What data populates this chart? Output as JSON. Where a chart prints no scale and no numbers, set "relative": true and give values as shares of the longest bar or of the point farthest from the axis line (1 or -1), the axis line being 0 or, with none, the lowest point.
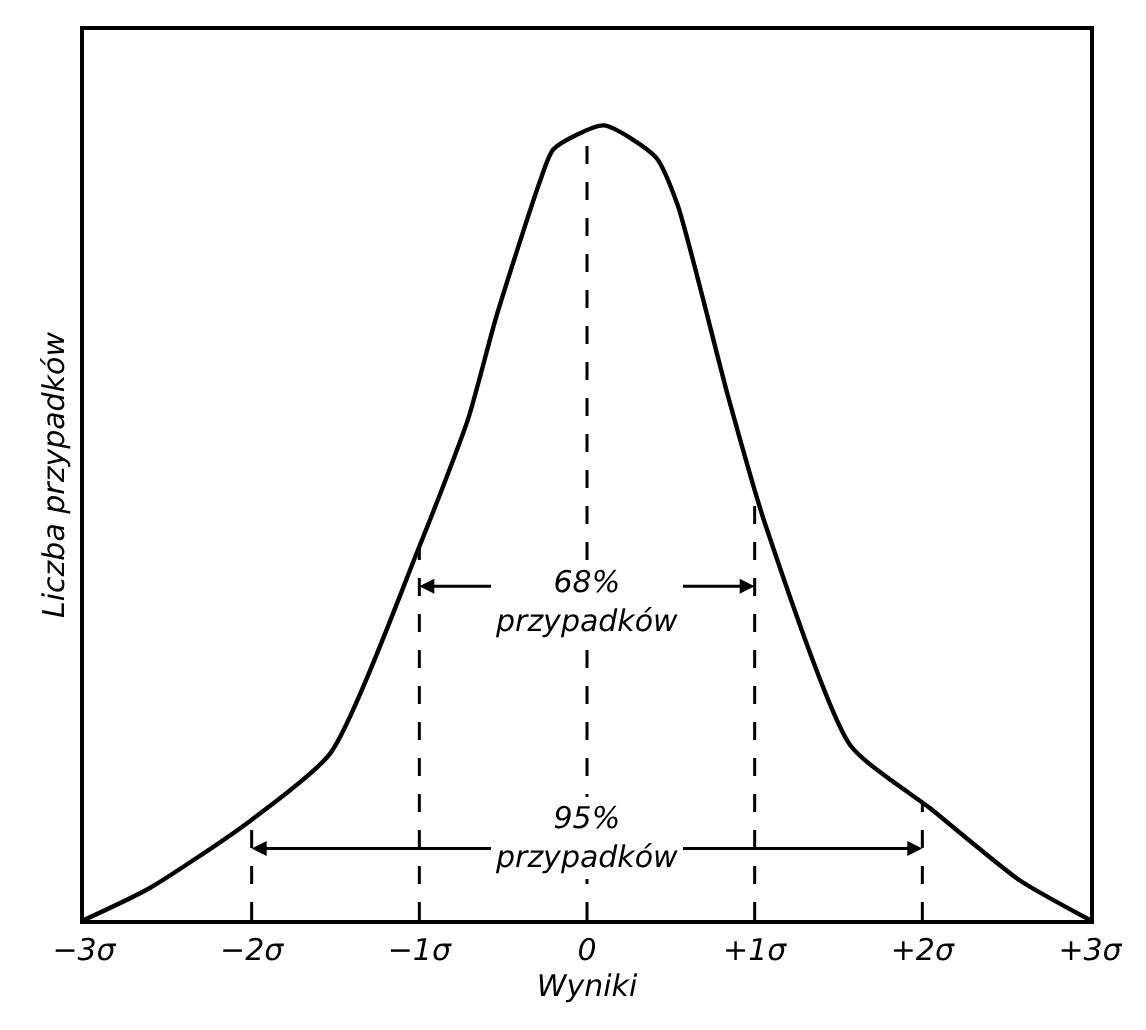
{
  "chart_data": {
    "type": "line",
    "relative": true,
    "xlabel": "Wyniki",
    "ylabel": "Liczba przypadków",
    "x": [
      -3,
      -2.61,
      -2.04,
      -1.53,
      -1,
      -0.71,
      -0.54,
      -0.28,
      -0.2,
      0.1,
      0.41,
      0.54,
      0.84,
      1.06,
      1.57,
      2.05,
      2.58,
      3
    ],
    "series": [
      {
        "color": "#000000",
        "values": [
          0,
          0.04,
          0.12,
          0.21,
          0.47,
          0.63,
          0.76,
          0.93,
          0.97,
          1,
          0.96,
          0.9,
          0.66,
          0.5,
          0.22,
          0.14,
          0.05,
          0
        ]
      }
    ],
    "xlim": [
      -3,
      3
    ],
    "xticks": [
      {
        "value": -3,
        "label": "−3σ"
      },
      {
        "value": -2,
        "label": "−2σ"
      },
      {
        "value": -1,
        "label": "−1σ"
      },
      0,
      {
        "value": 1,
        "label": "+1σ"
      },
      {
        "value": 2,
        "label": "+2σ"
      },
      {
        "value": 3,
        "label": "+3σ"
      }
    ],
    "ref_lines": [
      {
        "axis": "x",
        "value": -2,
        "line_style": "dashed"
      },
      {
        "axis": "x",
        "value": -1,
        "line_style": "dashed"
      },
      {
        "axis": "x",
        "value": 0,
        "line_style": "dashed"
      },
      {
        "axis": "x",
        "value": 1,
        "line_style": "dashed"
      },
      {
        "axis": "x",
        "value": 2,
        "line_style": "dashed"
      }
    ],
    "annotations": [
      {
        "text": "68%\nprzypadków",
        "x": 0,
        "y": 0.42
      },
      {
        "text": "95%\nprzypadków",
        "x": 0,
        "y": 0.09
      }
    ],
    "marker": "none",
    "line_style": "solid"
  }
}
